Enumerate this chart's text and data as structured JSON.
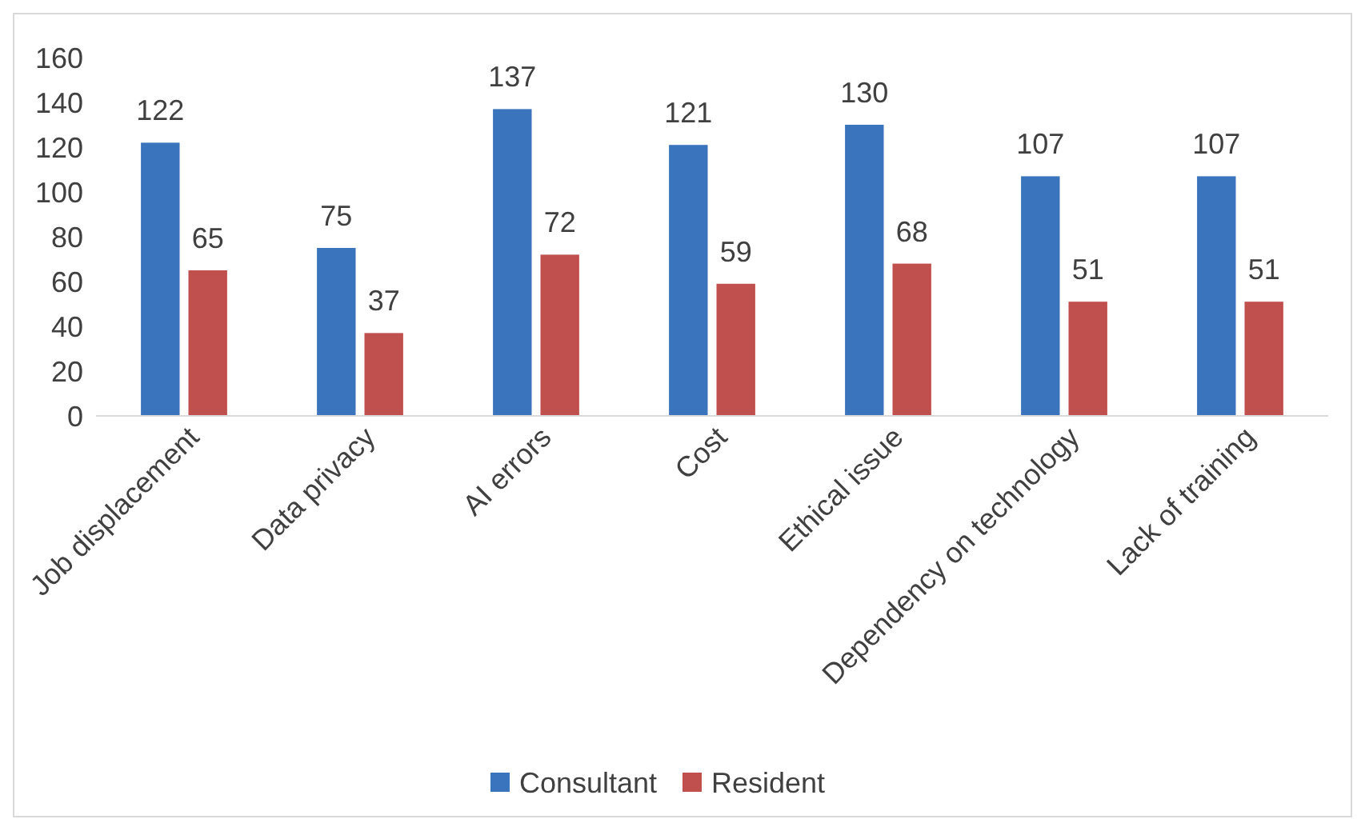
{
  "chart_data": {
    "type": "bar",
    "categories": [
      "Job displacement",
      "Data privacy",
      "AI errors",
      "Cost",
      "Ethical issue",
      "Dependency on technology",
      "Lack of training"
    ],
    "series": [
      {
        "name": "Consultant",
        "color": "#3a74bc",
        "values": [
          122,
          75,
          137,
          121,
          130,
          107,
          107
        ]
      },
      {
        "name": "Resident",
        "color": "#c0504d",
        "values": [
          65,
          37,
          72,
          59,
          68,
          51,
          51
        ]
      }
    ],
    "ylim": [
      0,
      160
    ],
    "yticks": [
      0,
      20,
      40,
      60,
      80,
      100,
      120,
      140,
      160
    ],
    "grid": false,
    "legend": "bottom",
    "data_labels": true
  }
}
